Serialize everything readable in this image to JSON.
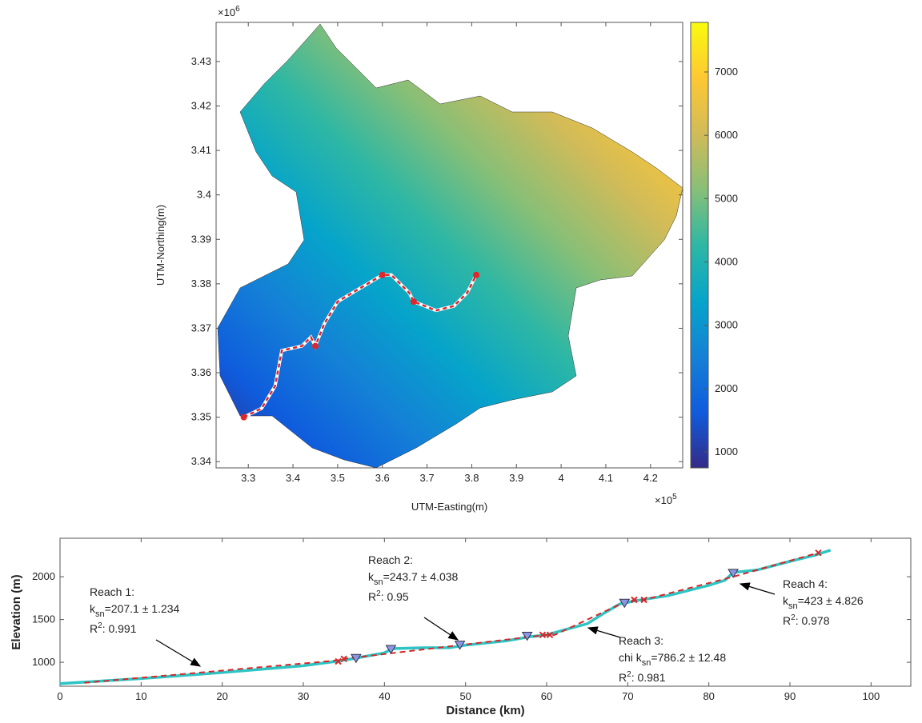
{
  "chart_data": [
    {
      "type": "map",
      "x_label": "UTM-Easting(m)",
      "y_label": "UTM-Northing(m)",
      "x_scale_base": "×10",
      "x_scale_exponent": "5",
      "y_scale_base": "×10",
      "y_scale_exponent": "6",
      "xlim": [
        3.228,
        4.272
      ],
      "xticks": [
        3.3,
        3.4,
        3.5,
        3.6,
        3.7,
        3.8,
        3.9,
        4,
        4.1,
        4.2
      ],
      "ylim": [
        3.3386,
        3.4388
      ],
      "yticks": [
        3.34,
        3.35,
        3.36,
        3.37,
        3.38,
        3.39,
        3.4,
        3.41,
        3.42,
        3.43
      ],
      "clim": [
        747,
        7783
      ],
      "cticks": [
        1000,
        2000,
        3000,
        4000,
        5000,
        6000,
        7000
      ],
      "colormap": [
        "#352a87",
        "#0f5cdd",
        "#1481d6",
        "#06a4ca",
        "#2eb7a4",
        "#87bf77",
        "#d1bb59",
        "#fec832",
        "#f9fb0e"
      ],
      "river": {
        "color": "#e0262b",
        "x": [
          3.29,
          3.33,
          3.36,
          3.375,
          3.42,
          3.44,
          3.45,
          3.47,
          3.5,
          3.55,
          3.6,
          3.62,
          3.66,
          3.67,
          3.72,
          3.76,
          3.79,
          3.81
        ],
        "values": [
          3.35,
          3.352,
          3.357,
          3.365,
          3.366,
          3.368,
          3.366,
          3.371,
          3.376,
          3.379,
          3.382,
          3.382,
          3.378,
          3.376,
          3.374,
          3.375,
          3.378,
          3.382
        ]
      },
      "knickpoints": {
        "color": "#e0262b",
        "x": [
          3.29,
          3.45,
          3.6,
          3.67,
          3.81
        ],
        "values": [
          3.35,
          3.366,
          3.382,
          3.376,
          3.382
        ]
      }
    },
    {
      "type": "line",
      "x_label": "Distance (km)",
      "y_label": "Elevation (m)",
      "xlim": [
        0,
        104.9
      ],
      "xticks": [
        0,
        10,
        20,
        30,
        40,
        50,
        60,
        70,
        80,
        90,
        100
      ],
      "ylim": [
        720,
        2450
      ],
      "yticks": [
        1000,
        1500,
        2000
      ],
      "series": [
        {
          "color": "#2ec4c4",
          "dash": false,
          "x": [
            0,
            5,
            10,
            20,
            30,
            34,
            36,
            40,
            41,
            45,
            48,
            50,
            55,
            58,
            60,
            63,
            65,
            67,
            69,
            71,
            75,
            80,
            82,
            83,
            86,
            90,
            93,
            95
          ],
          "values": [
            750,
            780,
            810,
            880,
            960,
            1010,
            1040,
            1110,
            1160,
            1170,
            1170,
            1200,
            1250,
            1300,
            1320,
            1400,
            1450,
            1570,
            1680,
            1720,
            1780,
            1900,
            1960,
            2050,
            2080,
            2180,
            2250,
            2310
          ]
        },
        {
          "color": "#d62728",
          "dash": true,
          "x": [
            3,
            34,
            35,
            60,
            61,
            70,
            72,
            83,
            93.5
          ],
          "values": [
            760,
            1020,
            1040,
            1320,
            1320,
            1720,
            1730,
            2000,
            2280
          ]
        }
      ],
      "markers": [
        {
          "shape": "triangle",
          "color": "#8c96e6",
          "x": [
            36.5,
            40.8,
            49.3,
            57.6,
            69.6,
            83
          ],
          "values": [
            1045,
            1150,
            1200,
            1305,
            1690,
            2040
          ]
        },
        {
          "shape": "x",
          "color": "#d62728",
          "x": [
            34.3,
            35,
            59.5,
            60.4,
            70.8,
            72,
            93.5
          ],
          "values": [
            1010,
            1040,
            1320,
            1320,
            1730,
            1730,
            2280
          ]
        }
      ],
      "annotations": [
        {
          "title": "Reach 1:",
          "k_prefix": "k",
          "k_sub": "sn",
          "k_text": "=207.1 ± 1.234",
          "r_prefix": "R",
          "r_sup": "2",
          "r_text": ": 0.991"
        },
        {
          "title": "Reach 2:",
          "k_prefix": "k",
          "k_sub": "sn",
          "k_text": "=243.7 ± 4.038",
          "r_prefix": "R",
          "r_sup": "2",
          "r_text": ": 0.95"
        },
        {
          "title": "Reach 3:",
          "k_prefix": "chi k",
          "k_sub": "sn",
          "k_text": "=786.2 ± 12.48",
          "r_prefix": "R",
          "r_sup": "2",
          "r_text": ": 0.981"
        },
        {
          "title": "Reach 4:",
          "k_prefix": "k",
          "k_sub": "sn",
          "k_text": "=423 ± 4.826",
          "r_prefix": "R",
          "r_sup": "2",
          "r_text": ": 0.978"
        }
      ]
    }
  ]
}
